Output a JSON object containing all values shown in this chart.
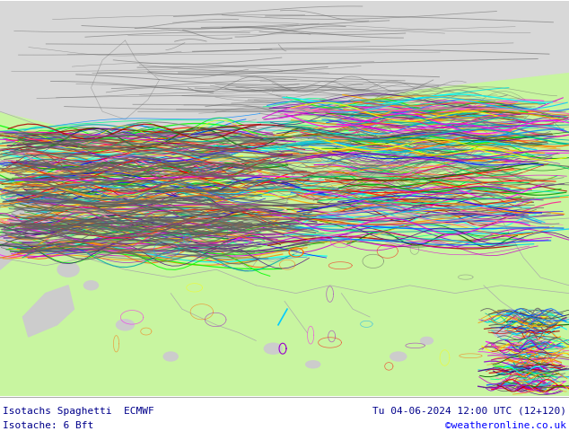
{
  "title_left_line1": "Isotachs Spaghetti  ECMWF",
  "title_left_line2": "Isotache: 6 Bft",
  "title_right_line1": "Tu 04-06-2024 12:00 UTC (12+120)",
  "title_right_line2": "©weatheronline.co.uk",
  "title_color": "#00008B",
  "watermark_color": "#0000FF",
  "bg_map_color": "#c8f5a0",
  "bg_sea_color": "#d8d8d8",
  "bg_bottom_color": "#ffffff",
  "figsize": [
    6.34,
    4.9
  ],
  "dpi": 100,
  "spaghetti_colors": [
    "#808080",
    "#505050",
    "#606060",
    "#404040",
    "#707070",
    "#909090",
    "#FF00FF",
    "#CC00CC",
    "#9900CC",
    "#DD00DD",
    "#0000FF",
    "#0066FF",
    "#00CCFF",
    "#0088FF",
    "#00CC00",
    "#009900",
    "#00FF00",
    "#006600",
    "#FFFF00",
    "#FFAA00",
    "#FF8800",
    "#FF6600",
    "#FF0000",
    "#CC0000",
    "#AA0000",
    "#FF69B4",
    "#FF1493",
    "#FF88BB",
    "#00FFFF",
    "#00AAAA",
    "#00DDDD",
    "#FF8C00",
    "#FFA500",
    "#9400D3",
    "#6600AA",
    "#4B0082",
    "#00FF88",
    "#00CC66"
  ]
}
